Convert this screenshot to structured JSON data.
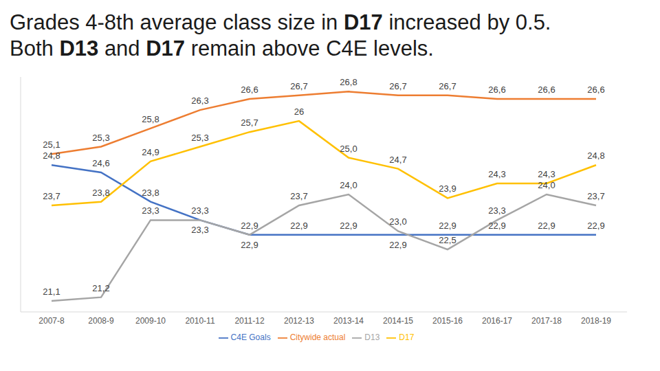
{
  "chart_data": {
    "type": "line",
    "title": "Grades 4-8th average class size in D17 increased by 0.5.\nBoth D13 and D17 remain above C4E levels.",
    "categories": [
      "2007-8",
      "2008-9",
      "2009-10",
      "2010-11",
      "2011-12",
      "2012-13",
      "2013-14",
      "2014-15",
      "2015-16",
      "2016-17",
      "2017-18",
      "2018-19"
    ],
    "series": [
      {
        "name": "C4E Goals",
        "color": "#4472c4",
        "values": [
          24.8,
          24.6,
          23.8,
          23.3,
          22.9,
          22.9,
          22.9,
          22.9,
          22.9,
          22.9,
          22.9,
          22.9
        ],
        "value_labels": [
          "24,8",
          "24,6",
          "23,8",
          "23,3",
          "22,9",
          "22,9",
          "22,9",
          "22,9",
          "22,9",
          "22,9",
          "22,9",
          "22,9"
        ]
      },
      {
        "name": "Citywide actual",
        "color": "#ed7d31",
        "values": [
          25.1,
          25.3,
          25.8,
          26.3,
          26.6,
          26.7,
          26.8,
          26.7,
          26.7,
          26.6,
          26.6,
          26.6
        ],
        "value_labels": [
          "25,1",
          "25,3",
          "25,8",
          "26,3",
          "26,6",
          "26,7",
          "26,8",
          "26,7",
          "26,7",
          "26,6",
          "26,6",
          "26,6"
        ]
      },
      {
        "name": "D13",
        "color": "#a5a5a5",
        "values": [
          21.1,
          21.2,
          23.3,
          23.3,
          22.9,
          23.7,
          24.0,
          23.0,
          22.5,
          23.3,
          24.0,
          23.7
        ],
        "value_labels": [
          "21,1",
          "21,2",
          "23,3",
          "23,3",
          "22,9",
          "23,7",
          "24,0",
          "23,0",
          "22,5",
          "23,3",
          "24,0",
          "23,7"
        ]
      },
      {
        "name": "D17",
        "color": "#ffc000",
        "values": [
          23.7,
          23.8,
          24.9,
          25.3,
          25.7,
          26,
          25.0,
          24.7,
          23.9,
          24.3,
          24.3,
          24.8
        ],
        "value_labels": [
          "23,7",
          "23,8",
          "24,9",
          "25,3",
          "25,7",
          "26",
          "25,0",
          "24,7",
          "23,9",
          "24,3",
          "24,3",
          "24,8"
        ]
      }
    ],
    "ylim": [
      20.8,
      27.2
    ],
    "grid": false,
    "legend": "bottom",
    "data_labels": true,
    "tick_labels": "x",
    "marker": "none"
  }
}
